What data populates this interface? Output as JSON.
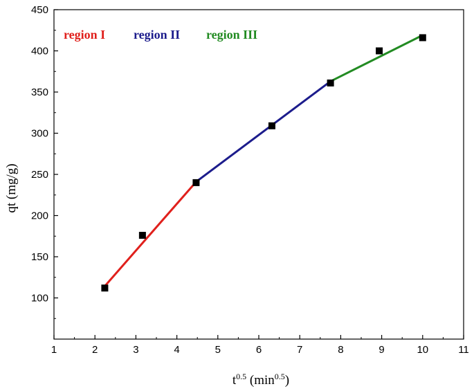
{
  "chart_data": {
    "type": "scatter",
    "xlabel": {
      "base": "t",
      "sup": "0.5",
      "unit_open": " (min",
      "unit_sup": "0.5",
      "unit_close": ")"
    },
    "ylabel": "qt (mg/g)",
    "xlim": [
      1,
      11
    ],
    "ylim": [
      50,
      450
    ],
    "xticks": [
      "1",
      "2",
      "3",
      "4",
      "5",
      "6",
      "7",
      "8",
      "9",
      "10",
      "11"
    ],
    "yticks": [
      "100",
      "150",
      "200",
      "250",
      "300",
      "350",
      "400",
      "450"
    ],
    "grid": false,
    "points": [
      {
        "x": 2.24,
        "y": 112
      },
      {
        "x": 3.16,
        "y": 176
      },
      {
        "x": 4.47,
        "y": 240
      },
      {
        "x": 6.32,
        "y": 309
      },
      {
        "x": 7.75,
        "y": 361
      },
      {
        "x": 8.94,
        "y": 400
      },
      {
        "x": 10.0,
        "y": 416
      }
    ],
    "fit_lines": [
      {
        "name": "region I",
        "color": "#e0201c",
        "x": [
          2.2,
          4.47
        ],
        "y": [
          112,
          241
        ]
      },
      {
        "name": "region II",
        "color": "#1c1c8c",
        "x": [
          4.47,
          7.75
        ],
        "y": [
          241,
          363
        ]
      },
      {
        "name": "region III",
        "color": "#228b22",
        "x": [
          7.75,
          10.0
        ],
        "y": [
          363,
          419
        ]
      }
    ]
  }
}
